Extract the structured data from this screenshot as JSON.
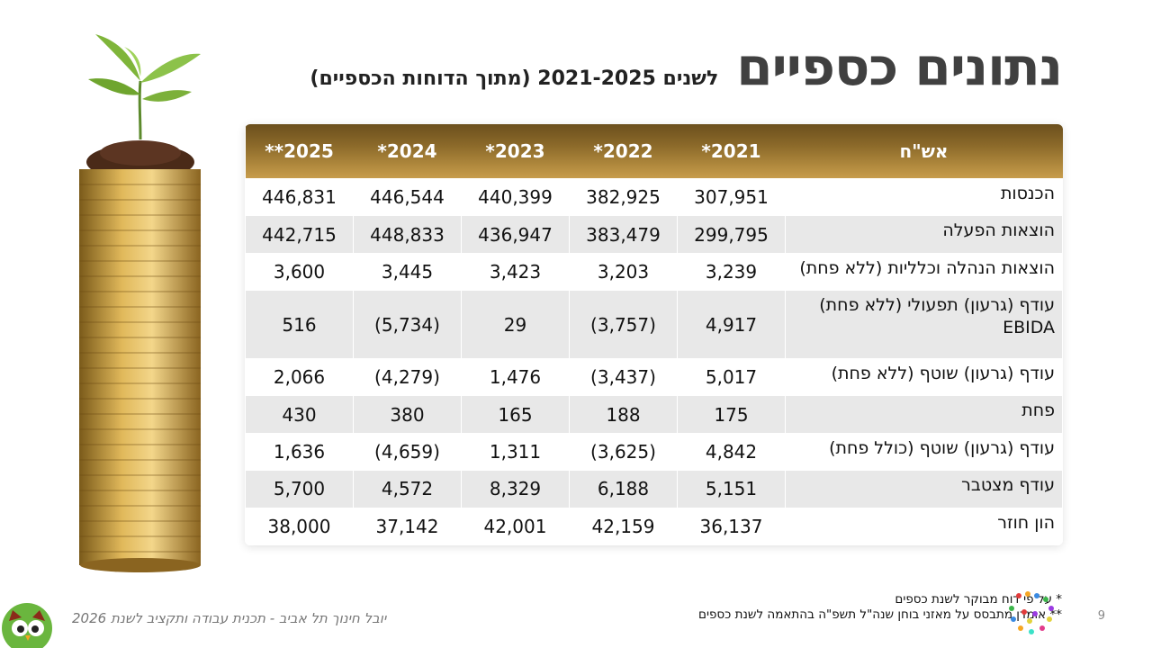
{
  "title": {
    "main": "נתונים כספיים",
    "sub": "לשנים 2021-2025 (מתוך הדוחות הכספיים)"
  },
  "table": {
    "headers": [
      "אש\"ח",
      "2021*",
      "2022*",
      "2023*",
      "2024*",
      "2025**"
    ],
    "rows": [
      {
        "label": "הכנסות",
        "values": [
          "307,951",
          "382,925",
          "440,399",
          "446,544",
          "446,831"
        ]
      },
      {
        "label": "הוצאות הפעלה",
        "values": [
          "299,795",
          "383,479",
          "436,947",
          "448,833",
          "442,715"
        ]
      },
      {
        "label": "הוצאות הנהלה וכלליות (ללא פחת)",
        "values": [
          "3,239",
          "3,203",
          "3,423",
          "3,445",
          "3,600"
        ]
      },
      {
        "label": "עודף (גרעון) תפעולי (ללא פחת) EBIDA",
        "values": [
          "4,917",
          "(3,757)",
          "29",
          "(5,734)",
          "516"
        ]
      },
      {
        "label": "עודף (גרעון) שוטף (ללא פחת)",
        "values": [
          "5,017",
          "(3,437)",
          "1,476",
          "(4,279)",
          "2,066"
        ]
      },
      {
        "label": "פחת",
        "values": [
          "175",
          "188",
          "165",
          "380",
          "430"
        ]
      },
      {
        "label": "עודף (גרעון) שוטף (כולל פחת)",
        "values": [
          "4,842",
          "(3,625)",
          "1,311",
          "(4,659)",
          "1,636"
        ]
      },
      {
        "label": "עודף  מצטבר",
        "values": [
          "5,151",
          "6,188",
          "8,329",
          "4,572",
          "5,700"
        ]
      },
      {
        "label": "הון חוזר",
        "values": [
          "36,137",
          "42,159",
          "42,001",
          "37,142",
          "38,000"
        ]
      }
    ]
  },
  "footnotes": [
    "* על פי דוח מבוקר לשנת כספים",
    "** אומדן מתבסס על מאזני בוחן שנה\"ל תשפ\"ה בהתאמה לשנת כספים"
  ],
  "page_number": "9",
  "footer": "יובל חינוך תל אביב - תכנית עבודה ותקציב לשנת 2026",
  "colors": {
    "header_gold": "#b48c3f",
    "title_gray": "#404040",
    "row_stripe": "#e8e8e8"
  }
}
